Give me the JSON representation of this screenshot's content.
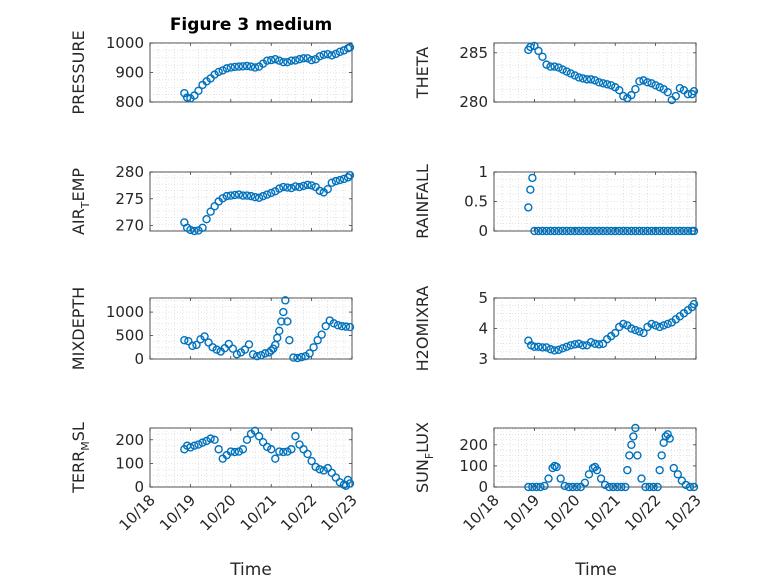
{
  "figure": {
    "title": "Figure 3 medium",
    "xlabel_left": "Time",
    "xlabel_right": "Time",
    "marker_color": "#0072BD"
  },
  "chart_data": [
    {
      "id": "pressure",
      "type": "scatter",
      "ylabel": "PRESSURE",
      "ylim": [
        800,
        1000
      ],
      "yticks": [
        800,
        900,
        1000
      ],
      "xlim": [
        0,
        5
      ],
      "xticks": [
        0,
        1,
        2,
        3,
        4,
        5
      ],
      "xticklabels": [
        "10/18",
        "10/19",
        "10/20",
        "10/21",
        "10/22",
        "10/23"
      ],
      "show_xticklabels": false,
      "x": [
        0.85,
        0.92,
        1.0,
        1.1,
        1.2,
        1.3,
        1.4,
        1.5,
        1.6,
        1.7,
        1.8,
        1.9,
        2.0,
        2.1,
        2.2,
        2.3,
        2.4,
        2.5,
        2.6,
        2.7,
        2.8,
        2.9,
        3.0,
        3.1,
        3.2,
        3.3,
        3.4,
        3.5,
        3.6,
        3.7,
        3.8,
        3.9,
        4.0,
        4.1,
        4.2,
        4.3,
        4.4,
        4.5,
        4.6,
        4.7,
        4.8,
        4.9,
        4.95
      ],
      "y": [
        830,
        815,
        812,
        822,
        838,
        858,
        870,
        880,
        893,
        902,
        907,
        914,
        917,
        919,
        920,
        921,
        922,
        920,
        917,
        920,
        930,
        940,
        942,
        945,
        940,
        935,
        935,
        940,
        941,
        945,
        948,
        948,
        942,
        945,
        955,
        960,
        962,
        958,
        963,
        970,
        975,
        982,
        985
      ]
    },
    {
      "id": "theta",
      "type": "scatter",
      "ylabel": "THETA",
      "ylim": [
        280,
        286
      ],
      "yticks": [
        280,
        285
      ],
      "xlim": [
        0,
        5
      ],
      "xticks": [
        0,
        1,
        2,
        3,
        4,
        5
      ],
      "xticklabels": [
        "10/18",
        "10/19",
        "10/20",
        "10/21",
        "10/22",
        "10/23"
      ],
      "show_xticklabels": false,
      "x": [
        0.85,
        0.9,
        1.0,
        1.1,
        1.2,
        1.3,
        1.4,
        1.5,
        1.6,
        1.7,
        1.8,
        1.9,
        2.0,
        2.1,
        2.2,
        2.3,
        2.4,
        2.5,
        2.6,
        2.7,
        2.8,
        2.9,
        3.0,
        3.1,
        3.2,
        3.3,
        3.4,
        3.5,
        3.6,
        3.7,
        3.8,
        3.9,
        4.0,
        4.1,
        4.2,
        4.3,
        4.4,
        4.5,
        4.6,
        4.7,
        4.8,
        4.9,
        4.95
      ],
      "y": [
        285.3,
        285.6,
        285.7,
        285.2,
        284.6,
        283.8,
        283.6,
        283.6,
        283.5,
        283.3,
        283.1,
        282.9,
        282.7,
        282.5,
        282.4,
        282.3,
        282.3,
        282.2,
        282.0,
        281.9,
        281.8,
        281.7,
        281.5,
        281.2,
        280.6,
        280.4,
        280.7,
        281.3,
        282.1,
        282.2,
        282.0,
        281.9,
        281.7,
        281.5,
        281.3,
        281.0,
        280.2,
        280.6,
        281.4,
        281.2,
        280.8,
        280.8,
        281.1
      ]
    },
    {
      "id": "air_temp",
      "type": "scatter",
      "ylabel": "AIR",
      "ylabel_sub": "T",
      "ylabel_rest": "EMP",
      "ylim": [
        269,
        280
      ],
      "yticks": [
        270,
        275,
        280
      ],
      "xlim": [
        0,
        5
      ],
      "xticks": [
        0,
        1,
        2,
        3,
        4,
        5
      ],
      "xticklabels": [
        "10/18",
        "10/19",
        "10/20",
        "10/21",
        "10/22",
        "10/23"
      ],
      "show_xticklabels": false,
      "x": [
        0.85,
        0.92,
        1.0,
        1.1,
        1.2,
        1.3,
        1.4,
        1.5,
        1.6,
        1.7,
        1.8,
        1.9,
        2.0,
        2.1,
        2.2,
        2.3,
        2.4,
        2.5,
        2.6,
        2.7,
        2.8,
        2.9,
        3.0,
        3.1,
        3.2,
        3.3,
        3.4,
        3.5,
        3.6,
        3.7,
        3.8,
        3.9,
        4.0,
        4.1,
        4.2,
        4.3,
        4.4,
        4.5,
        4.6,
        4.7,
        4.8,
        4.9,
        4.95
      ],
      "y": [
        270.6,
        269.6,
        269.2,
        269.0,
        269.1,
        269.6,
        271.2,
        272.6,
        273.6,
        274.5,
        275.1,
        275.5,
        275.6,
        275.7,
        275.8,
        275.6,
        275.6,
        275.5,
        275.3,
        275.2,
        275.5,
        275.8,
        276.1,
        276.4,
        276.9,
        277.2,
        277.1,
        277.0,
        277.3,
        277.2,
        277.4,
        277.6,
        277.5,
        277.2,
        276.5,
        276.2,
        276.8,
        278.0,
        278.3,
        278.5,
        278.7,
        279.0,
        279.4
      ]
    },
    {
      "id": "rainfall",
      "type": "scatter",
      "ylabel": "RAINFALL",
      "ylim": [
        0,
        1
      ],
      "yticks": [
        0,
        0.5,
        1
      ],
      "xlim": [
        0,
        5
      ],
      "xticks": [
        0,
        1,
        2,
        3,
        4,
        5
      ],
      "xticklabels": [
        "10/18",
        "10/19",
        "10/20",
        "10/21",
        "10/22",
        "10/23"
      ],
      "show_xticklabels": false,
      "x": [
        0.85,
        0.9,
        0.95,
        1.0,
        1.1,
        1.2,
        1.3,
        1.4,
        1.5,
        1.6,
        1.7,
        1.8,
        1.9,
        2.0,
        2.1,
        2.2,
        2.3,
        2.4,
        2.5,
        2.6,
        2.7,
        2.8,
        2.9,
        3.0,
        3.1,
        3.2,
        3.3,
        3.4,
        3.5,
        3.6,
        3.7,
        3.8,
        3.9,
        4.0,
        4.1,
        4.2,
        4.3,
        4.4,
        4.5,
        4.6,
        4.7,
        4.8,
        4.9,
        4.95
      ],
      "y": [
        0.4,
        0.7,
        0.9,
        0,
        0,
        0,
        0,
        0,
        0,
        0,
        0,
        0,
        0,
        0,
        0,
        0,
        0,
        0,
        0,
        0,
        0,
        0,
        0,
        0,
        0,
        0,
        0,
        0,
        0,
        0,
        0,
        0,
        0,
        0,
        0,
        0,
        0,
        0,
        0,
        0,
        0,
        0,
        0,
        0
      ]
    },
    {
      "id": "mixdepth",
      "type": "scatter",
      "ylabel": "MIXDEPTH",
      "ylim": [
        0,
        1300
      ],
      "yticks": [
        0,
        500,
        1000
      ],
      "xlim": [
        0,
        5
      ],
      "xticks": [
        0,
        1,
        2,
        3,
        4,
        5
      ],
      "xticklabels": [
        "10/18",
        "10/19",
        "10/20",
        "10/21",
        "10/22",
        "10/23"
      ],
      "show_xticklabels": false,
      "x": [
        0.85,
        0.95,
        1.05,
        1.15,
        1.25,
        1.35,
        1.45,
        1.55,
        1.65,
        1.75,
        1.85,
        1.95,
        2.05,
        2.15,
        2.25,
        2.35,
        2.45,
        2.55,
        2.65,
        2.75,
        2.85,
        2.95,
        3.0,
        3.05,
        3.1,
        3.15,
        3.2,
        3.25,
        3.3,
        3.35,
        3.4,
        3.45,
        3.55,
        3.65,
        3.75,
        3.85,
        3.95,
        4.05,
        4.15,
        4.25,
        4.35,
        4.45,
        4.55,
        4.65,
        4.75,
        4.85,
        4.95
      ],
      "y": [
        400,
        380,
        280,
        300,
        420,
        480,
        350,
        250,
        200,
        160,
        230,
        320,
        220,
        100,
        140,
        200,
        310,
        100,
        60,
        80,
        120,
        140,
        180,
        220,
        300,
        450,
        600,
        800,
        1000,
        1250,
        800,
        400,
        30,
        20,
        40,
        60,
        120,
        250,
        400,
        520,
        700,
        820,
        760,
        720,
        700,
        690,
        680
      ]
    },
    {
      "id": "h2omixra",
      "type": "scatter",
      "ylabel": "H2OMIXRA",
      "ylim": [
        3,
        5
      ],
      "yticks": [
        3,
        4,
        5
      ],
      "xlim": [
        0,
        5
      ],
      "xticks": [
        0,
        1,
        2,
        3,
        4,
        5
      ],
      "xticklabels": [
        "10/18",
        "10/19",
        "10/20",
        "10/21",
        "10/22",
        "10/23"
      ],
      "show_xticklabels": false,
      "x": [
        0.85,
        0.92,
        1.0,
        1.1,
        1.2,
        1.3,
        1.4,
        1.5,
        1.6,
        1.7,
        1.8,
        1.9,
        2.0,
        2.1,
        2.2,
        2.3,
        2.4,
        2.5,
        2.6,
        2.7,
        2.8,
        2.9,
        3.0,
        3.1,
        3.2,
        3.3,
        3.4,
        3.5,
        3.6,
        3.7,
        3.8,
        3.9,
        4.0,
        4.1,
        4.2,
        4.3,
        4.4,
        4.5,
        4.6,
        4.7,
        4.8,
        4.9,
        4.95
      ],
      "y": [
        3.6,
        3.45,
        3.4,
        3.4,
        3.38,
        3.38,
        3.32,
        3.28,
        3.3,
        3.35,
        3.4,
        3.45,
        3.48,
        3.5,
        3.45,
        3.45,
        3.55,
        3.5,
        3.48,
        3.5,
        3.65,
        3.75,
        3.85,
        4.05,
        4.15,
        4.1,
        4.0,
        3.95,
        3.9,
        3.85,
        4.05,
        4.15,
        4.1,
        4.05,
        4.1,
        4.15,
        4.2,
        4.3,
        4.4,
        4.5,
        4.6,
        4.7,
        4.8
      ]
    },
    {
      "id": "terr_msl",
      "type": "scatter",
      "ylabel": "TERR",
      "ylabel_sub": "M",
      "ylabel_rest": "SL",
      "ylim": [
        0,
        250
      ],
      "yticks": [
        0,
        100,
        200
      ],
      "xlim": [
        0,
        5
      ],
      "xticks": [
        0,
        1,
        2,
        3,
        4,
        5
      ],
      "xticklabels": [
        "10/18",
        "10/19",
        "10/20",
        "10/21",
        "10/22",
        "10/23"
      ],
      "show_xticklabels": true,
      "x": [
        0.85,
        0.92,
        1.0,
        1.1,
        1.2,
        1.3,
        1.4,
        1.5,
        1.6,
        1.7,
        1.8,
        1.9,
        2.0,
        2.1,
        2.2,
        2.3,
        2.4,
        2.5,
        2.6,
        2.7,
        2.8,
        2.9,
        3.0,
        3.1,
        3.2,
        3.3,
        3.4,
        3.5,
        3.6,
        3.7,
        3.8,
        3.9,
        4.0,
        4.1,
        4.2,
        4.3,
        4.4,
        4.5,
        4.6,
        4.7,
        4.8,
        4.85,
        4.9,
        4.95
      ],
      "y": [
        160,
        175,
        168,
        175,
        180,
        188,
        195,
        205,
        200,
        160,
        120,
        135,
        150,
        148,
        150,
        160,
        200,
        225,
        238,
        215,
        190,
        170,
        160,
        120,
        150,
        148,
        150,
        160,
        215,
        180,
        160,
        140,
        110,
        85,
        75,
        70,
        80,
        60,
        40,
        20,
        10,
        5,
        30,
        15
      ]
    },
    {
      "id": "sun_flux",
      "type": "scatter",
      "ylabel": "SUN",
      "ylabel_sub": "F",
      "ylabel_rest": "LUX",
      "ylim": [
        0,
        280
      ],
      "yticks": [
        0,
        100,
        200
      ],
      "xlim": [
        0,
        5
      ],
      "xticks": [
        0,
        1,
        2,
        3,
        4,
        5
      ],
      "xticklabels": [
        "10/18",
        "10/19",
        "10/20",
        "10/21",
        "10/22",
        "10/23"
      ],
      "show_xticklabels": true,
      "x": [
        0.85,
        0.95,
        1.05,
        1.15,
        1.25,
        1.35,
        1.45,
        1.5,
        1.55,
        1.65,
        1.75,
        1.85,
        1.95,
        2.05,
        2.15,
        2.25,
        2.35,
        2.45,
        2.5,
        2.55,
        2.65,
        2.75,
        2.85,
        2.95,
        3.05,
        3.15,
        3.25,
        3.3,
        3.35,
        3.4,
        3.45,
        3.5,
        3.55,
        3.65,
        3.75,
        3.85,
        3.95,
        4.05,
        4.1,
        4.15,
        4.2,
        4.25,
        4.3,
        4.35,
        4.45,
        4.55,
        4.65,
        4.75,
        4.85,
        4.95
      ],
      "y": [
        0,
        0,
        0,
        0,
        5,
        40,
        90,
        100,
        95,
        40,
        5,
        0,
        0,
        0,
        0,
        20,
        60,
        90,
        95,
        80,
        40,
        10,
        0,
        0,
        0,
        0,
        0,
        80,
        150,
        200,
        240,
        280,
        150,
        40,
        0,
        0,
        0,
        0,
        80,
        150,
        210,
        240,
        250,
        230,
        90,
        60,
        30,
        10,
        0,
        0
      ]
    }
  ]
}
